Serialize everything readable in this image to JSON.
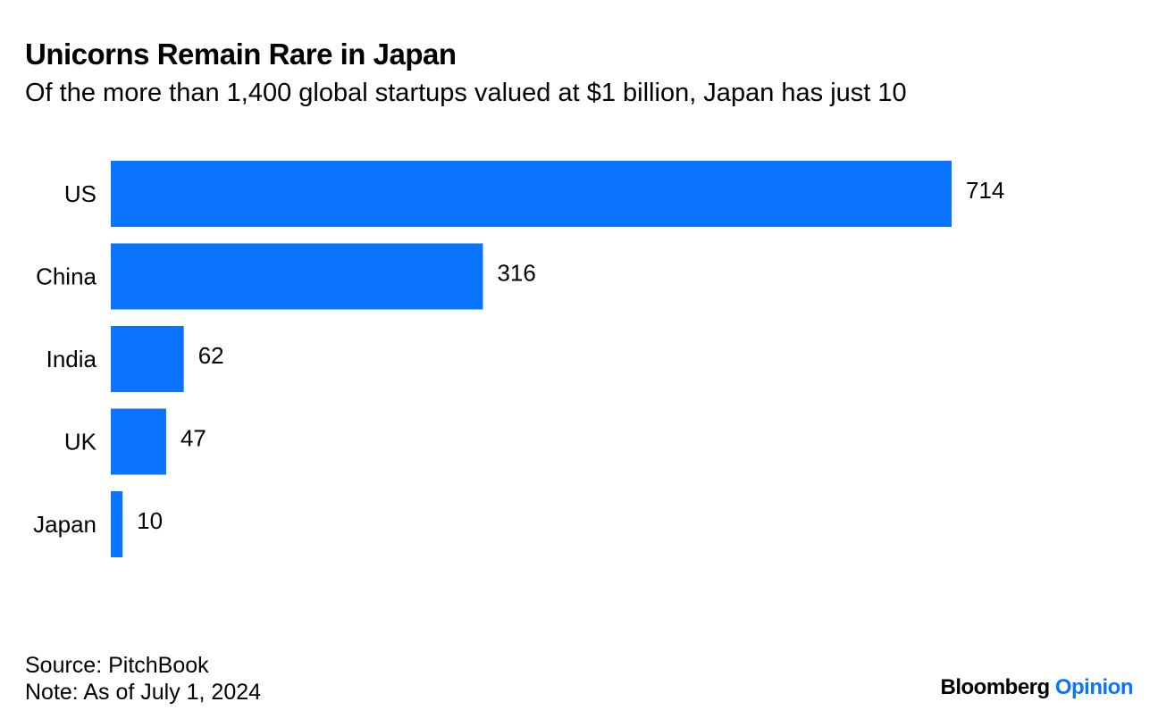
{
  "title": "Unicorns Remain Rare in Japan",
  "subtitle": "Of the more than 1,400 global startups valued at $1 billion, Japan has just 10",
  "chart_data": {
    "type": "bar",
    "orientation": "horizontal",
    "categories": [
      "US",
      "China",
      "India",
      "UK",
      "Japan"
    ],
    "values": [
      714,
      316,
      62,
      47,
      10
    ],
    "value_labels": [
      "714",
      "316",
      "62",
      "47",
      "10"
    ],
    "bar_color": "#0b74ff",
    "xlim": [
      0,
      714
    ],
    "grid": false,
    "legend": "none"
  },
  "footer": {
    "source": "Source: PitchBook",
    "note": "Note: As of July 1, 2024"
  },
  "brand": {
    "name": "Bloomberg",
    "section": "Opinion",
    "accent_color": "#0b74ff"
  }
}
